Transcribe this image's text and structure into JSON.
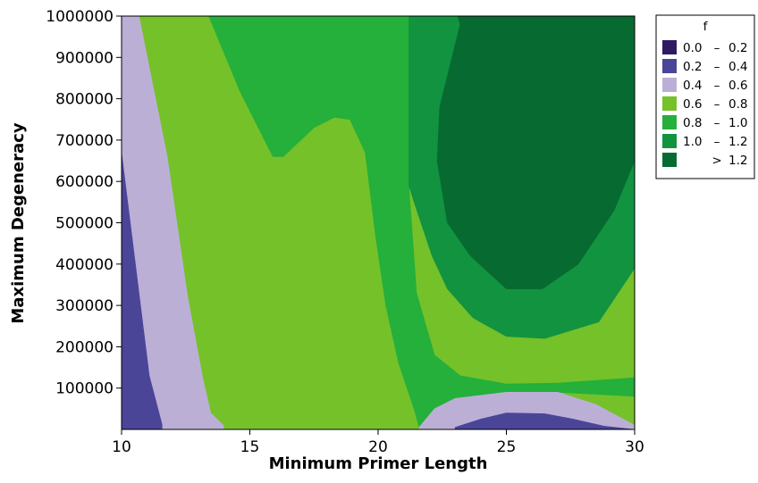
{
  "chart_data": {
    "type": "contour",
    "xlabel": "Minimum Primer Length",
    "ylabel": "Maximum Degeneracy",
    "xlim": [
      10,
      30
    ],
    "ylim": [
      0,
      1000000
    ],
    "x_ticks": [
      "10",
      "15",
      "20",
      "25",
      "30"
    ],
    "y_ticks": [
      "100000",
      "200000",
      "300000",
      "400000",
      "500000",
      "600000",
      "700000",
      "800000",
      "900000",
      "1000000"
    ],
    "legend": {
      "title": "f",
      "placement": "right",
      "entries": [
        {
          "low": "0.0",
          "sep": "–",
          "high": "0.2",
          "color": "#2e1a63"
        },
        {
          "low": "0.2",
          "sep": "–",
          "high": "0.4",
          "color": "#4a4597"
        },
        {
          "low": "0.4",
          "sep": "–",
          "high": "0.6",
          "color": "#bcafd6"
        },
        {
          "low": "0.6",
          "sep": "–",
          "high": "0.8",
          "color": "#75c12a"
        },
        {
          "low": "0.8",
          "sep": "–",
          "high": "1.0",
          "color": "#24b03a"
        },
        {
          "low": "1.0",
          "sep": "–",
          "high": "1.2",
          "color": "#129340"
        },
        {
          "low": "",
          "sep": ">",
          "high": "1.2",
          "color": "#076b31"
        }
      ]
    },
    "regions": [
      {
        "level": "0.2 – 0.4",
        "color": "#4a4597",
        "points": [
          [
            10,
            0
          ],
          [
            10,
            680000
          ],
          [
            11.1,
            130000
          ],
          [
            11.6,
            12000
          ],
          [
            11.6,
            0
          ]
        ]
      },
      {
        "level": "0.4 – 0.6",
        "color": "#bcafd6",
        "points": [
          [
            10,
            680000
          ],
          [
            10,
            1000000
          ],
          [
            10.7,
            1000000
          ],
          [
            11.8,
            660000
          ],
          [
            12.6,
            320000
          ],
          [
            13.2,
            120000
          ],
          [
            13.5,
            40000
          ],
          [
            14,
            10000
          ],
          [
            14,
            0
          ],
          [
            11.6,
            0
          ],
          [
            11.6,
            12000
          ],
          [
            11.1,
            130000
          ]
        ]
      },
      {
        "level": "0.6 – 0.8",
        "color": "#75c12a",
        "points": [
          [
            10.7,
            1000000
          ],
          [
            13.4,
            1000000
          ],
          [
            14.6,
            820000
          ],
          [
            15.9,
            660000
          ],
          [
            16.3,
            660000
          ],
          [
            17.5,
            730000
          ],
          [
            18.3,
            755000
          ],
          [
            18.9,
            750000
          ],
          [
            19.5,
            670000
          ],
          [
            19.9,
            470000
          ],
          [
            20.3,
            300000
          ],
          [
            20.8,
            160000
          ],
          [
            21.4,
            50000
          ],
          [
            21.6,
            5000
          ],
          [
            14,
            5000
          ],
          [
            14,
            0
          ],
          [
            14,
            10000
          ],
          [
            13.5,
            40000
          ],
          [
            13.2,
            120000
          ],
          [
            12.6,
            320000
          ],
          [
            11.8,
            660000
          ]
        ]
      },
      {
        "level": "0.8 – 1.0",
        "color": "#24b03a",
        "points": [
          [
            13.4,
            1000000
          ],
          [
            21.2,
            1000000
          ],
          [
            21.2,
            590000
          ],
          [
            21.5,
            330000
          ],
          [
            22.2,
            180000
          ],
          [
            23.2,
            130000
          ],
          [
            25,
            110000
          ],
          [
            27,
            112000
          ],
          [
            30,
            125000
          ],
          [
            30,
            80000
          ],
          [
            27,
            90000
          ],
          [
            25,
            90000
          ],
          [
            23,
            75000
          ],
          [
            22.2,
            50000
          ],
          [
            21.7,
            15000
          ],
          [
            21.6,
            5000
          ],
          [
            21.4,
            50000
          ],
          [
            20.8,
            160000
          ],
          [
            20.3,
            300000
          ],
          [
            19.9,
            470000
          ],
          [
            19.5,
            670000
          ],
          [
            18.9,
            750000
          ],
          [
            18.3,
            755000
          ],
          [
            17.5,
            730000
          ],
          [
            16.3,
            660000
          ],
          [
            15.9,
            660000
          ],
          [
            14.6,
            820000
          ]
        ]
      },
      {
        "level": "1.0 – 1.2",
        "color": "#129340",
        "points": [
          [
            21.2,
            1000000
          ],
          [
            23.1,
            1000000
          ],
          [
            23.2,
            980000
          ],
          [
            22.4,
            780000
          ],
          [
            22.3,
            650000
          ],
          [
            22.7,
            500000
          ],
          [
            23.6,
            420000
          ],
          [
            25,
            340000
          ],
          [
            26.4,
            340000
          ],
          [
            27.8,
            400000
          ],
          [
            29.2,
            530000
          ],
          [
            30,
            650000
          ],
          [
            30,
            390000
          ],
          [
            28.6,
            260000
          ],
          [
            26.5,
            220000
          ],
          [
            25,
            225000
          ],
          [
            23.7,
            270000
          ],
          [
            22.7,
            340000
          ],
          [
            22.1,
            420000
          ],
          [
            21.4,
            550000
          ],
          [
            21.2,
            590000
          ]
        ]
      },
      {
        "level": "> 1.2",
        "color": "#076b31",
        "points": [
          [
            23.1,
            1000000
          ],
          [
            30,
            1000000
          ],
          [
            30,
            650000
          ],
          [
            29.2,
            530000
          ],
          [
            27.8,
            400000
          ],
          [
            26.4,
            340000
          ],
          [
            25,
            340000
          ],
          [
            23.6,
            420000
          ],
          [
            22.7,
            500000
          ],
          [
            22.3,
            650000
          ],
          [
            22.4,
            780000
          ],
          [
            23.2,
            980000
          ]
        ]
      },
      {
        "level": "0.4 – 0.6",
        "color": "#bcafd6",
        "points": [
          [
            21.6,
            5000
          ],
          [
            22.2,
            50000
          ],
          [
            23,
            75000
          ],
          [
            25,
            90000
          ],
          [
            27,
            90000
          ],
          [
            28.5,
            60000
          ],
          [
            30,
            10000
          ],
          [
            30,
            0
          ],
          [
            21.6,
            0
          ]
        ]
      },
      {
        "level": "0.2 – 0.4",
        "color": "#4a4597",
        "points": [
          [
            23,
            5000
          ],
          [
            24,
            25000
          ],
          [
            25,
            40000
          ],
          [
            26.5,
            38000
          ],
          [
            27.6,
            25000
          ],
          [
            28.8,
            8000
          ],
          [
            30,
            0
          ],
          [
            23,
            0
          ]
        ]
      }
    ]
  }
}
